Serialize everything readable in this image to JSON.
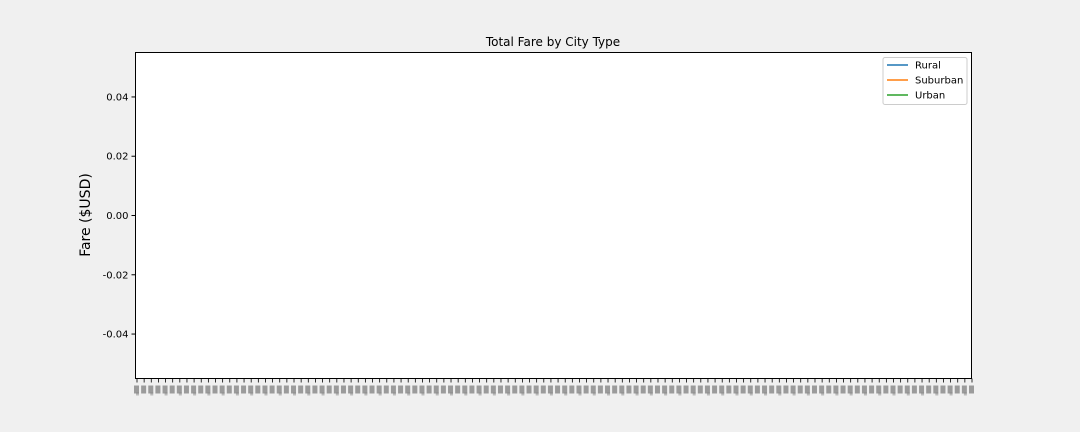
{
  "chart_data": {
    "type": "line",
    "title": "Total Fare by City Type",
    "xlabel": "",
    "ylabel": "Fare ($USD)",
    "ylim": [
      -0.055,
      0.055
    ],
    "yticks": [
      "0.04",
      "0.02",
      "0.00",
      "-0.02",
      "-0.04"
    ],
    "ytick_values": [
      0.04,
      0.02,
      0.0,
      -0.02,
      -0.04
    ],
    "x_tick_count": 118,
    "x_tick_labels_legible": false,
    "grid": false,
    "legend_position": "top-right",
    "series": [
      {
        "name": "Rural",
        "color": "#1f77b4",
        "values": []
      },
      {
        "name": "Suburban",
        "color": "#ff7f0e",
        "values": []
      },
      {
        "name": "Urban",
        "color": "#2ca02c",
        "values": []
      }
    ]
  }
}
